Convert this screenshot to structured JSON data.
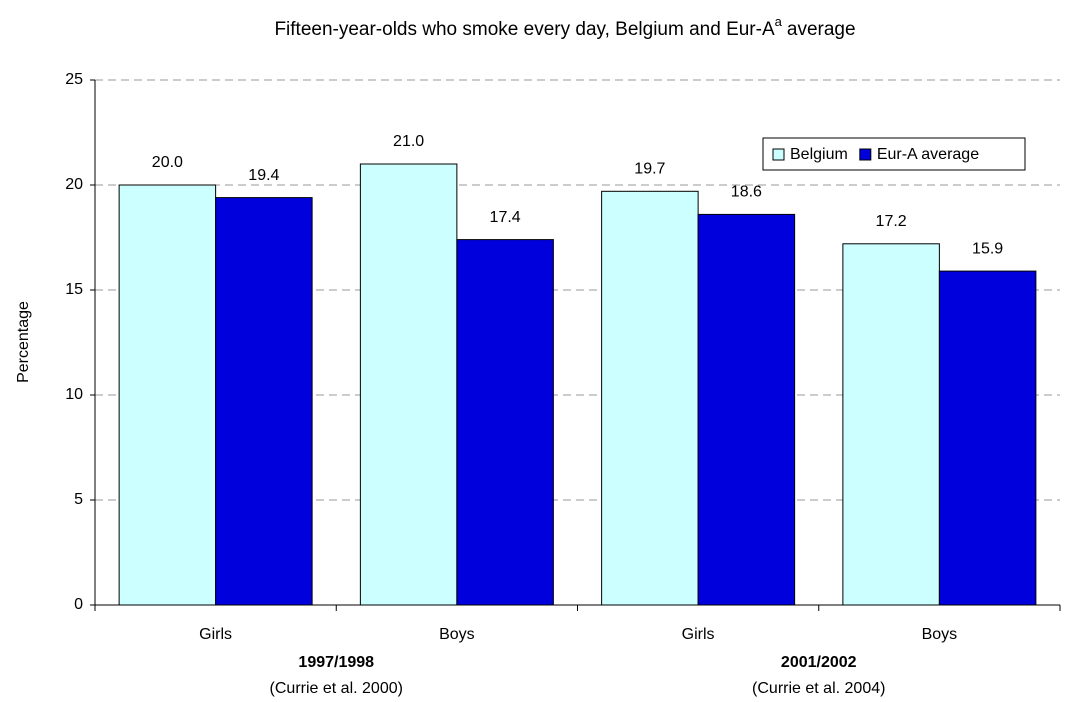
{
  "chart_data": {
    "type": "bar",
    "title": "Fifteen-year-olds who smoke every day, Belgium and Eur-A",
    "title_superscript": "a",
    "title_end": "average",
    "ylabel": "Percentage",
    "categories": [
      "Girls",
      "Boys",
      "Girls",
      "Boys"
    ],
    "groups": [
      {
        "label": "1997/1998",
        "source": "(Currie et al. 2000)"
      },
      {
        "label": "2001/2002",
        "source": "(Currie et al. 2004)"
      }
    ],
    "series": [
      {
        "name": "Belgium",
        "color": "#ccffff",
        "values": [
          20,
          21,
          19.7,
          17.2
        ],
        "value_labels": [
          "20.0",
          "21.0",
          "19.7",
          "17.2"
        ]
      },
      {
        "name": "Eur-A average",
        "color": "#0000dd",
        "values": [
          19.4,
          17.4,
          18.6,
          15.9
        ],
        "value_labels": [
          "19.4",
          "17.4",
          "18.6",
          "15.9"
        ]
      }
    ],
    "ylim": [
      0,
      25
    ],
    "yticks": [
      0,
      5,
      10,
      15,
      20,
      25
    ],
    "grid": true,
    "legend": "top-right"
  }
}
